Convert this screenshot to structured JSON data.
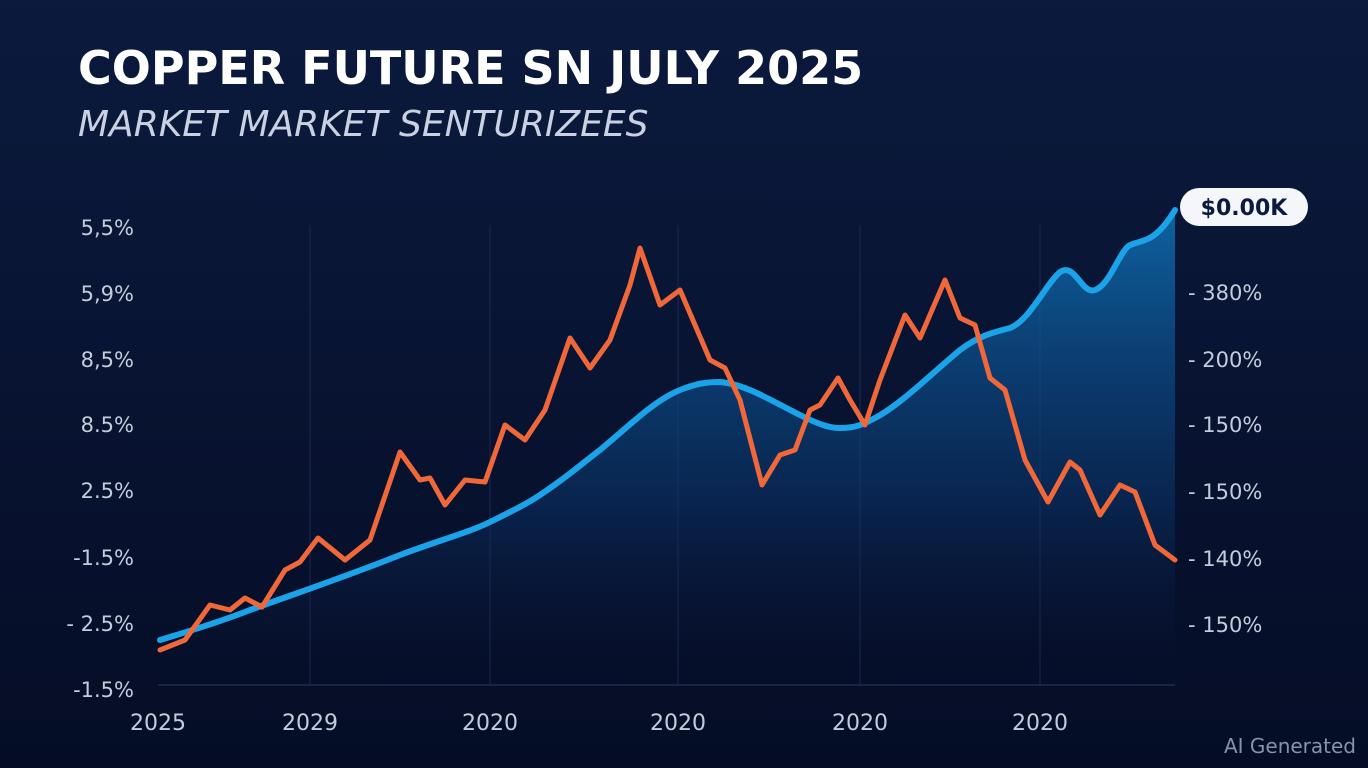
{
  "header": {
    "title": "COPPER FUTURE SN JULY 2025",
    "subtitle": "MARKET MARKET SENTURIZEES"
  },
  "chart": {
    "left_axis_labels": [
      "5,5%",
      "5,9%",
      "8,5%",
      "8.5%",
      "2.5%",
      "-1.5%",
      "- 2.5%",
      "-1.5%"
    ],
    "right_axis_labels": [
      "- 380%",
      "- 200%",
      "- 150%",
      "- 150%",
      "- 140%",
      "- 150%"
    ],
    "x_axis_labels": [
      "2025",
      "2029",
      "2020",
      "2020",
      "2020",
      "2020"
    ],
    "callout": "$0.00K"
  },
  "watermark": "AI Generated"
}
